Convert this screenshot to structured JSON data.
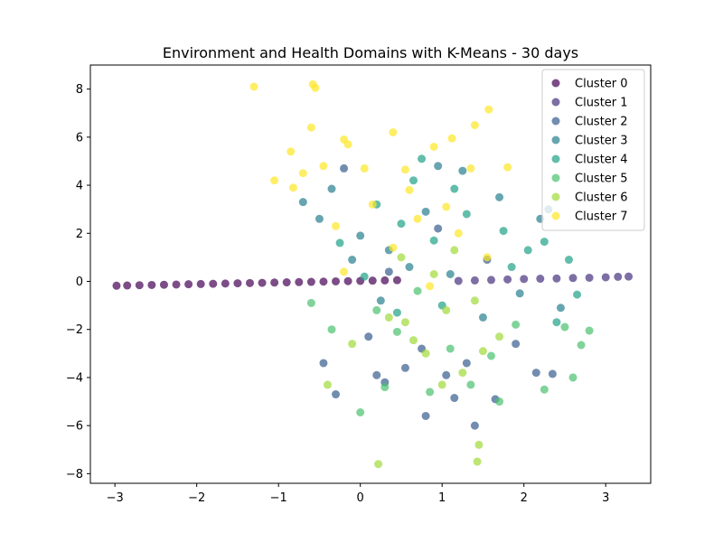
{
  "chart_data": {
    "type": "scatter",
    "title": "Environment and Health Domains with K-Means - 30 days",
    "xlabel": "",
    "ylabel": "",
    "xlim": [
      -3.3,
      3.55
    ],
    "ylim": [
      -8.4,
      9.0
    ],
    "x_ticks": [
      -3,
      -2,
      -1,
      0,
      1,
      2,
      3
    ],
    "y_ticks": [
      -8,
      -6,
      -4,
      -2,
      0,
      2,
      4,
      6,
      8
    ],
    "x_tick_labels": [
      "−3",
      "−2",
      "−1",
      "0",
      "1",
      "2",
      "3"
    ],
    "y_tick_labels": [
      "−8",
      "−6",
      "−4",
      "−2",
      "0",
      "2",
      "4",
      "6",
      "8"
    ],
    "grid": false,
    "legend_position": "top-right",
    "marker_alpha": 0.7,
    "series": [
      {
        "name": "Cluster 0",
        "color": "#440154",
        "points": [
          [
            -2.98,
            -0.18
          ],
          [
            -2.85,
            -0.17
          ],
          [
            -2.7,
            -0.16
          ],
          [
            -2.55,
            -0.15
          ],
          [
            -2.4,
            -0.14
          ],
          [
            -2.25,
            -0.13
          ],
          [
            -2.1,
            -0.12
          ],
          [
            -1.95,
            -0.11
          ],
          [
            -1.8,
            -0.1
          ],
          [
            -1.65,
            -0.09
          ],
          [
            -1.5,
            -0.08
          ],
          [
            -1.35,
            -0.07
          ],
          [
            -1.2,
            -0.06
          ],
          [
            -1.05,
            -0.05
          ],
          [
            -0.9,
            -0.04
          ],
          [
            -0.75,
            -0.03
          ],
          [
            -0.6,
            -0.02
          ],
          [
            -0.45,
            -0.01
          ],
          [
            -0.3,
            0.0
          ],
          [
            -0.15,
            0.01
          ],
          [
            0.0,
            0.02
          ],
          [
            0.15,
            0.03
          ],
          [
            0.3,
            0.04
          ],
          [
            0.45,
            0.05
          ]
        ]
      },
      {
        "name": "Cluster 1",
        "color": "#46327e",
        "points": [
          [
            1.2,
            0.02
          ],
          [
            1.4,
            0.04
          ],
          [
            1.6,
            0.06
          ],
          [
            1.8,
            0.08
          ],
          [
            2.0,
            0.1
          ],
          [
            2.2,
            0.11
          ],
          [
            2.4,
            0.12
          ],
          [
            2.6,
            0.14
          ],
          [
            2.8,
            0.15
          ],
          [
            3.0,
            0.17
          ],
          [
            3.15,
            0.19
          ],
          [
            3.28,
            0.2
          ]
        ]
      },
      {
        "name": "Cluster 2",
        "color": "#365c8d",
        "points": [
          [
            -0.2,
            4.7
          ],
          [
            -0.3,
            -4.7
          ],
          [
            0.3,
            -4.2
          ],
          [
            0.8,
            -5.6
          ],
          [
            1.15,
            -4.85
          ],
          [
            1.4,
            -6.0
          ],
          [
            1.05,
            -3.9
          ],
          [
            0.55,
            -3.6
          ],
          [
            1.65,
            -4.9
          ],
          [
            2.15,
            -3.8
          ],
          [
            1.9,
            -2.6
          ],
          [
            0.1,
            -2.3
          ],
          [
            0.75,
            -2.8
          ],
          [
            1.3,
            -3.4
          ],
          [
            0.35,
            0.4
          ],
          [
            1.55,
            0.9
          ],
          [
            0.95,
            2.2
          ],
          [
            2.35,
            -3.85
          ],
          [
            -0.45,
            -3.4
          ],
          [
            0.2,
            -3.9
          ]
        ]
      },
      {
        "name": "Cluster 3",
        "color": "#277f8e",
        "points": [
          [
            -0.7,
            3.3
          ],
          [
            -0.5,
            2.6
          ],
          [
            0.0,
            1.9
          ],
          [
            0.35,
            1.3
          ],
          [
            0.8,
            2.9
          ],
          [
            1.25,
            4.6
          ],
          [
            1.7,
            3.5
          ],
          [
            2.2,
            2.6
          ],
          [
            2.3,
            3.0
          ],
          [
            1.95,
            -0.5
          ],
          [
            2.45,
            -1.1
          ],
          [
            0.6,
            0.6
          ],
          [
            1.1,
            0.3
          ],
          [
            -0.1,
            0.9
          ],
          [
            0.25,
            -0.8
          ],
          [
            1.5,
            -1.5
          ],
          [
            0.95,
            4.8
          ],
          [
            -0.35,
            3.85
          ]
        ]
      },
      {
        "name": "Cluster 4",
        "color": "#1fa187",
        "points": [
          [
            0.2,
            3.2
          ],
          [
            0.5,
            2.4
          ],
          [
            0.9,
            1.7
          ],
          [
            1.3,
            2.8
          ],
          [
            1.75,
            2.1
          ],
          [
            2.05,
            1.3
          ],
          [
            2.55,
            0.9
          ],
          [
            2.65,
            -0.55
          ],
          [
            2.4,
            -1.7
          ],
          [
            0.65,
            4.2
          ],
          [
            1.15,
            3.85
          ],
          [
            -0.25,
            1.6
          ],
          [
            0.05,
            0.2
          ],
          [
            0.45,
            -1.3
          ],
          [
            1.0,
            -1.0
          ],
          [
            1.85,
            0.6
          ],
          [
            2.25,
            1.65
          ],
          [
            0.75,
            5.1
          ]
        ]
      },
      {
        "name": "Cluster 5",
        "color": "#4ac16d",
        "points": [
          [
            0.0,
            -5.45
          ],
          [
            0.3,
            -4.4
          ],
          [
            0.85,
            -4.6
          ],
          [
            1.35,
            -4.3
          ],
          [
            1.7,
            -5.0
          ],
          [
            2.25,
            -4.5
          ],
          [
            2.6,
            -4.0
          ],
          [
            2.7,
            -2.65
          ],
          [
            2.5,
            -1.9
          ],
          [
            2.8,
            -2.05
          ],
          [
            0.45,
            -2.1
          ],
          [
            1.1,
            -2.8
          ],
          [
            1.6,
            -3.1
          ],
          [
            -0.35,
            -2.0
          ],
          [
            -0.6,
            -0.9
          ],
          [
            0.7,
            -0.4
          ],
          [
            0.2,
            -1.2
          ],
          [
            1.9,
            -1.8
          ]
        ]
      },
      {
        "name": "Cluster 6",
        "color": "#a0da39",
        "points": [
          [
            0.22,
            -7.6
          ],
          [
            1.43,
            -7.5
          ],
          [
            1.45,
            -6.8
          ],
          [
            1.0,
            -4.3
          ],
          [
            1.25,
            -3.8
          ],
          [
            0.8,
            -3.0
          ],
          [
            0.55,
            -1.7
          ],
          [
            1.05,
            -1.2
          ],
          [
            1.4,
            -0.8
          ],
          [
            1.7,
            -2.3
          ],
          [
            0.35,
            -1.5
          ],
          [
            -0.1,
            -2.6
          ],
          [
            0.9,
            0.3
          ],
          [
            1.15,
            1.3
          ],
          [
            0.5,
            1.0
          ],
          [
            -0.4,
            -4.3
          ],
          [
            1.5,
            -2.9
          ],
          [
            0.65,
            -2.45
          ]
        ]
      },
      {
        "name": "Cluster 7",
        "color": "#fde725",
        "points": [
          [
            -1.3,
            8.1
          ],
          [
            -0.58,
            8.2
          ],
          [
            -0.55,
            8.05
          ],
          [
            -0.6,
            6.4
          ],
          [
            -0.2,
            5.9
          ],
          [
            -0.15,
            5.7
          ],
          [
            0.4,
            6.2
          ],
          [
            0.9,
            5.6
          ],
          [
            1.12,
            5.95
          ],
          [
            1.57,
            7.15
          ],
          [
            1.4,
            6.5
          ],
          [
            -1.05,
            4.2
          ],
          [
            -0.85,
            5.4
          ],
          [
            -0.45,
            4.8
          ],
          [
            -0.7,
            4.5
          ],
          [
            -0.82,
            3.9
          ],
          [
            0.05,
            4.7
          ],
          [
            0.55,
            4.65
          ],
          [
            1.35,
            4.7
          ],
          [
            1.8,
            4.75
          ],
          [
            0.15,
            3.2
          ],
          [
            0.7,
            2.6
          ],
          [
            -0.3,
            2.3
          ],
          [
            0.4,
            1.4
          ],
          [
            1.2,
            2.0
          ],
          [
            1.55,
            1.0
          ],
          [
            0.85,
            -0.2
          ],
          [
            -0.2,
            0.4
          ],
          [
            0.6,
            3.8
          ],
          [
            1.05,
            3.1
          ]
        ]
      }
    ]
  }
}
